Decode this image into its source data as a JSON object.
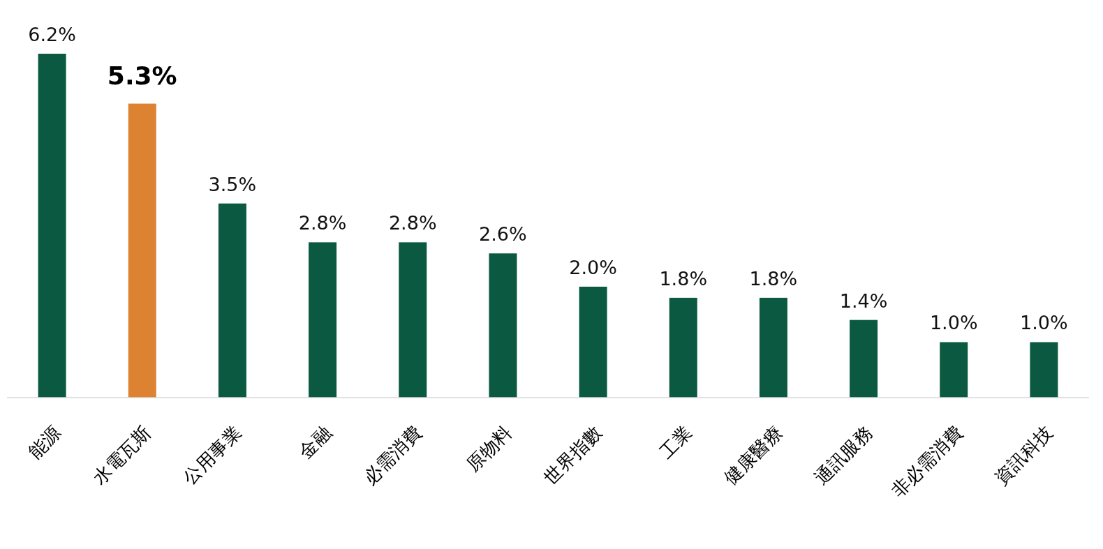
{
  "chart_data": {
    "type": "bar",
    "categories": [
      "能源",
      "水電瓦斯",
      "公用事業",
      "金融",
      "必需消費",
      "原物料",
      "世界指數",
      "工業",
      "健康醫療",
      "通訊服務",
      "非必需消費",
      "資訊科技"
    ],
    "values": [
      6.2,
      5.3,
      3.5,
      2.8,
      2.8,
      2.6,
      2.0,
      1.8,
      1.8,
      1.4,
      1.0,
      1.0
    ],
    "colors": [
      "#0b5940",
      "#dc8230",
      "#0b5940",
      "#0b5940",
      "#0b5940",
      "#0b5940",
      "#0b5940",
      "#0b5940",
      "#0b5940",
      "#0b5940",
      "#0b5940",
      "#0b5940"
    ],
    "value_labels": [
      "6.2%",
      "5.3%",
      "3.5%",
      "2.8%",
      "2.8%",
      "2.6%",
      "2.0%",
      "1.8%",
      "1.8%",
      "1.4%",
      "1.0%",
      "1.0%"
    ]
  }
}
